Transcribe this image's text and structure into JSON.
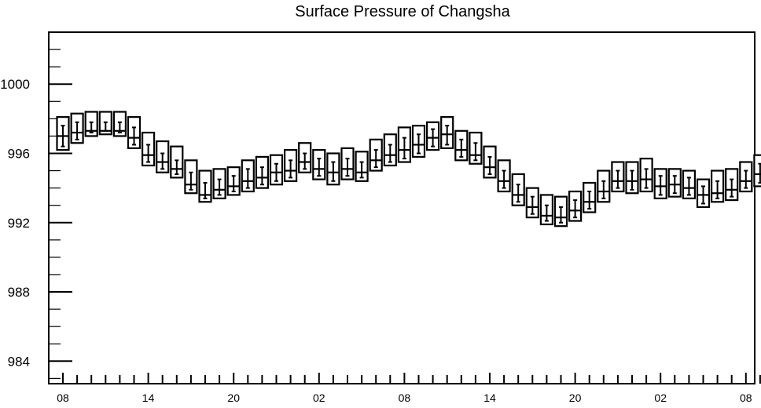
{
  "chart_data": {
    "type": "boxplot",
    "title": "Surface Pressure of Changsha",
    "xlabel": "",
    "ylabel": "",
    "ylim": [
      982.7,
      1003
    ],
    "y_ticks": [
      984,
      988,
      992,
      996,
      1000
    ],
    "y_tick_labels": [
      "984",
      "988",
      "992",
      "996",
      "1000"
    ],
    "x_tick_labels": [
      "08",
      "14",
      "20",
      "02",
      "08",
      "14",
      "20",
      "02",
      "08"
    ],
    "x_label_every": 6,
    "grid": false,
    "series": [
      {
        "box_low": [
          996.2,
          996.6,
          997.0,
          997.1,
          997.0,
          996.3,
          995.3,
          994.9,
          994.6,
          993.7,
          993.2,
          993.4,
          993.6,
          993.8,
          994.0,
          994.2,
          994.4,
          994.9,
          994.5,
          994.2,
          994.5,
          994.4,
          995.0,
          995.3,
          995.5,
          995.8,
          996.2,
          996.3,
          995.6,
          995.4,
          994.6,
          993.8,
          993.0,
          992.3,
          991.9,
          991.8,
          992.1,
          992.6,
          993.2,
          993.8,
          993.7,
          993.8,
          993.4,
          993.5,
          993.4,
          992.9,
          993.2,
          993.3,
          993.8,
          994.1
        ],
        "median": [
          997.0,
          997.2,
          997.3,
          997.3,
          997.3,
          996.9,
          995.9,
          995.5,
          995.1,
          994.2,
          993.6,
          993.9,
          994.1,
          994.4,
          994.6,
          994.9,
          995.0,
          995.5,
          995.1,
          994.9,
          995.1,
          994.9,
          995.6,
          995.9,
          996.2,
          996.5,
          996.9,
          997.1,
          996.2,
          995.9,
          995.2,
          994.4,
          993.6,
          992.9,
          992.4,
          992.3,
          992.7,
          993.2,
          993.8,
          994.4,
          994.4,
          994.5,
          994.1,
          994.2,
          994.0,
          993.6,
          993.7,
          993.9,
          994.4,
          994.8
        ],
        "box_high": [
          998.1,
          998.3,
          998.4,
          998.4,
          998.4,
          998.1,
          997.2,
          996.7,
          996.4,
          995.6,
          995.0,
          995.1,
          995.2,
          995.6,
          995.8,
          995.9,
          996.2,
          996.6,
          996.2,
          996.0,
          996.3,
          996.1,
          996.8,
          997.1,
          997.5,
          997.6,
          997.8,
          998.1,
          997.3,
          997.2,
          996.4,
          995.6,
          994.8,
          994.0,
          993.6,
          993.5,
          993.8,
          994.3,
          995.0,
          995.5,
          995.5,
          995.7,
          995.1,
          995.1,
          995.0,
          994.5,
          995.0,
          995.1,
          995.5,
          995.9
        ],
        "whisker_low": [
          996.4,
          996.8,
          997.2,
          997.3,
          997.2,
          996.5,
          995.5,
          995.1,
          994.8,
          993.9,
          993.4,
          993.6,
          993.8,
          994.0,
          994.2,
          994.4,
          994.6,
          995.1,
          994.7,
          994.4,
          994.7,
          994.6,
          995.2,
          995.5,
          995.7,
          996.0,
          996.4,
          996.5,
          995.8,
          995.6,
          994.8,
          994.0,
          993.2,
          992.5,
          992.1,
          992.0,
          992.3,
          992.8,
          993.4,
          994.0,
          993.9,
          994.0,
          993.6,
          993.7,
          993.6,
          993.1,
          993.4,
          993.5,
          994.0,
          994.3
        ],
        "whisker_high": [
          997.6,
          997.8,
          997.8,
          997.8,
          997.8,
          997.5,
          996.5,
          996.0,
          995.6,
          994.9,
          994.3,
          994.5,
          994.7,
          995.1,
          995.2,
          995.4,
          995.6,
          996.0,
          995.7,
          995.5,
          995.7,
          995.5,
          996.2,
          996.5,
          996.9,
          997.1,
          997.4,
          997.6,
          996.8,
          996.6,
          995.8,
          995.0,
          994.2,
          993.5,
          993.0,
          992.9,
          993.3,
          993.8,
          994.4,
          995.0,
          995.0,
          995.1,
          994.7,
          994.7,
          994.6,
          994.1,
          994.4,
          994.5,
          995.0,
          995.4
        ]
      }
    ]
  }
}
